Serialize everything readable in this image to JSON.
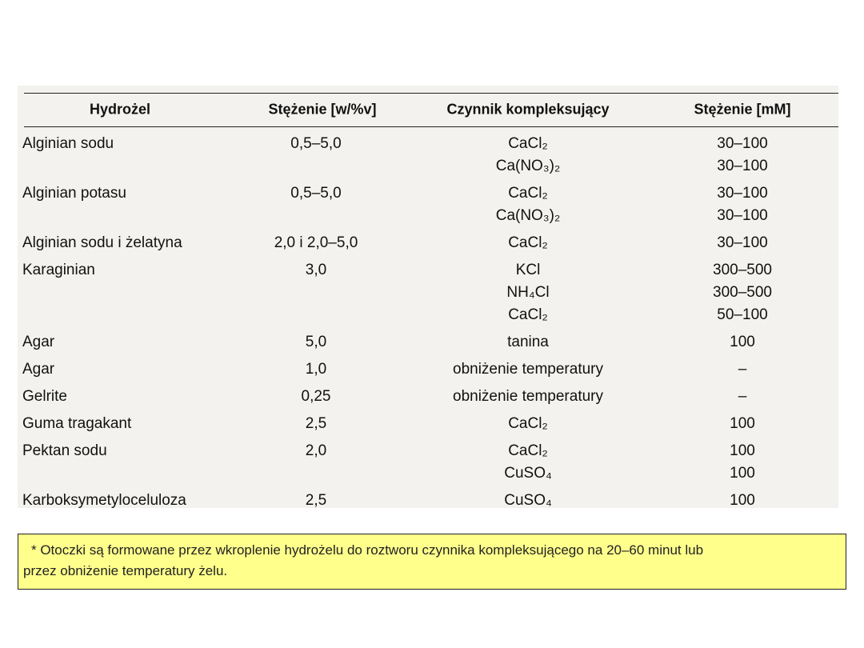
{
  "table": {
    "header": [
      "Hydrożel",
      "Stężenie [w/%v]",
      "Czynnik kompleksujący",
      "Stężenie [mM]"
    ],
    "rows": [
      {
        "hydrogel": "Alginian sodu",
        "concentration": "0,5–5,0",
        "agents": [
          {
            "name": "CaCl₂",
            "mm": "30–100"
          },
          {
            "name": "Ca(NO₃)₂",
            "mm": "30–100"
          }
        ]
      },
      {
        "hydrogel": "Alginian potasu",
        "concentration": "0,5–5,0",
        "agents": [
          {
            "name": "CaCl₂",
            "mm": "30–100"
          },
          {
            "name": "Ca(NO₃)₂",
            "mm": "30–100"
          }
        ]
      },
      {
        "hydrogel": "Alginian sodu i żelatyna",
        "concentration": "2,0 i 2,0–5,0",
        "agents": [
          {
            "name": "CaCl₂",
            "mm": "30–100"
          }
        ]
      },
      {
        "hydrogel": "Karaginian",
        "concentration": "3,0",
        "agents": [
          {
            "name": "KCl",
            "mm": "300–500"
          },
          {
            "name": "NH₄Cl",
            "mm": "300–500"
          },
          {
            "name": "CaCl₂",
            "mm": "50–100"
          }
        ]
      },
      {
        "hydrogel": "Agar",
        "concentration": "5,0",
        "agents": [
          {
            "name": "tanina",
            "mm": "100"
          }
        ]
      },
      {
        "hydrogel": "Agar",
        "concentration": "1,0",
        "agents": [
          {
            "name": "obniżenie temperatury",
            "mm": "–"
          }
        ]
      },
      {
        "hydrogel": "Gelrite",
        "concentration": "0,25",
        "agents": [
          {
            "name": "obniżenie temperatury",
            "mm": "–"
          }
        ]
      },
      {
        "hydrogel": "Guma tragakant",
        "concentration": "2,5",
        "agents": [
          {
            "name": "CaCl₂",
            "mm": "100"
          }
        ]
      },
      {
        "hydrogel": "Pektan sodu",
        "concentration": "2,0",
        "agents": [
          {
            "name": "CaCl₂",
            "mm": "100"
          },
          {
            "name": "CuSO₄",
            "mm": "100"
          }
        ]
      },
      {
        "hydrogel": "Karboksymetyloceluloza",
        "concentration": "2,5",
        "agents": [
          {
            "name": "CuSO₄",
            "mm": "100"
          }
        ]
      }
    ]
  },
  "footnote": [
    "* Otoczki są formowane przez wkroplenie hydrożelu do roztworu czynnika kompleksującego na 20–60 minut lub",
    "przez obniżenie temperatury żelu."
  ]
}
